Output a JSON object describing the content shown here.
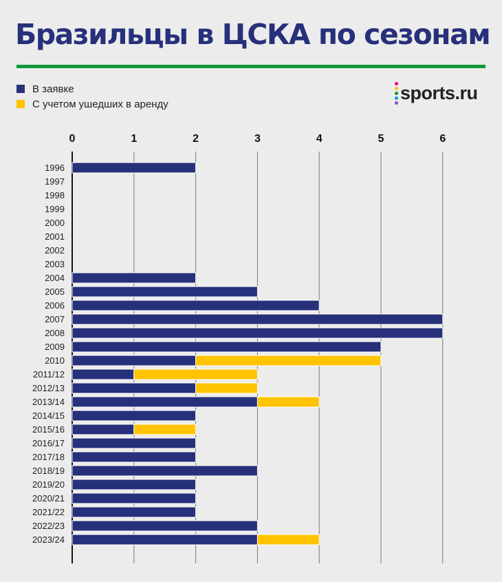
{
  "header": {
    "title": "Бразильцы в ЦСКА по сезонам"
  },
  "brand": {
    "logo_text": "sports.ru"
  },
  "colors": {
    "primary": "#27307a",
    "secondary": "#ffc300",
    "rule": "#0f9a3a",
    "background": "#ececec"
  },
  "legend": [
    {
      "label": "В заявке",
      "color": "#27307a"
    },
    {
      "label": "С учетом ушедших в аренду",
      "color": "#ffc300"
    }
  ],
  "chart_data": {
    "type": "bar",
    "orientation": "horizontal",
    "stacked": true,
    "title": "Бразильцы в ЦСКА по сезонам",
    "x_axis_position": "top",
    "xlim": [
      0,
      6
    ],
    "xticks": [
      0,
      1,
      2,
      3,
      4,
      5,
      6
    ],
    "grid": true,
    "categories": [
      "1996",
      "1997",
      "1998",
      "1999",
      "2000",
      "2001",
      "2002",
      "2003",
      "2004",
      "2005",
      "2006",
      "2007",
      "2008",
      "2009",
      "2010",
      "2011/12",
      "2012/13",
      "2013/14",
      "2014/15",
      "2015/16",
      "2016/17",
      "2017/18",
      "2018/19",
      "2019/20",
      "2020/21",
      "2021/22",
      "2022/23",
      "2023/24"
    ],
    "series": [
      {
        "name": "В заявке",
        "color": "#27307a",
        "values": [
          2,
          0,
          0,
          0,
          0,
          0,
          0,
          0,
          2,
          3,
          4,
          6,
          6,
          5,
          2,
          1,
          2,
          3,
          2,
          1,
          2,
          2,
          3,
          2,
          2,
          2,
          3,
          3
        ]
      },
      {
        "name": "С учетом ушедших в аренду",
        "color": "#ffc300",
        "values": [
          0,
          0,
          0,
          0,
          0,
          0,
          0,
          0,
          0,
          0,
          0,
          0,
          0,
          0,
          3,
          2,
          1,
          1,
          0,
          1,
          0,
          0,
          0,
          0,
          0,
          0,
          0,
          1
        ]
      }
    ]
  }
}
